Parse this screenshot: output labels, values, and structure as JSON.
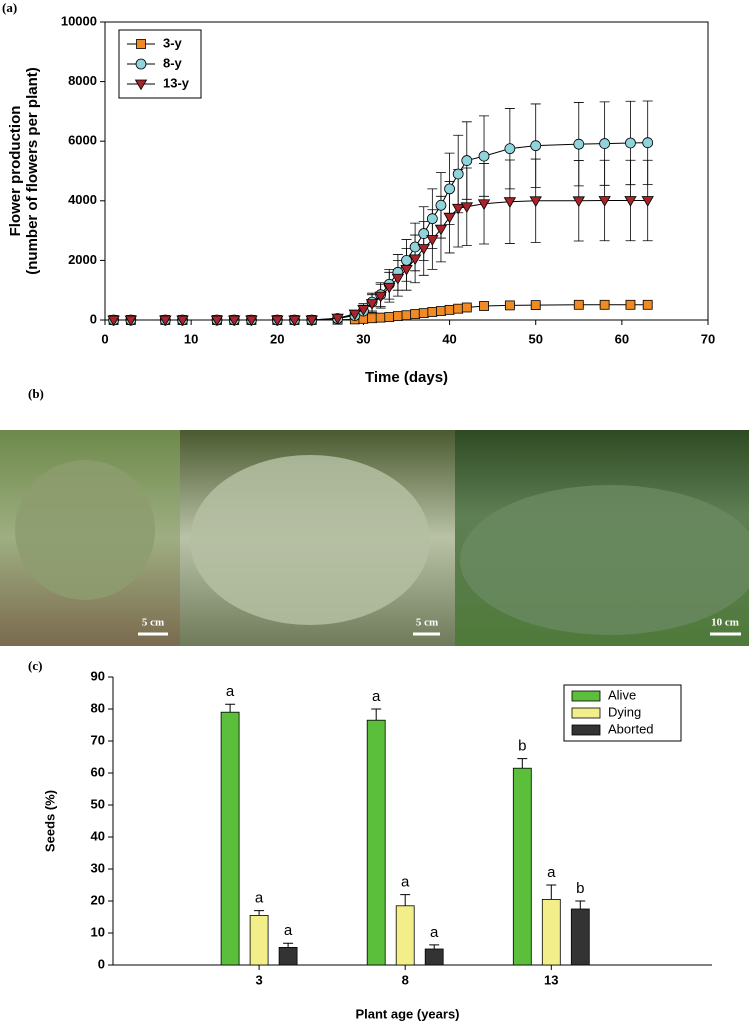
{
  "panel_labels": [
    "(a)",
    "(b)",
    "(c)"
  ],
  "photos": {
    "scale_labels": [
      "5 cm",
      "5 cm",
      "10 cm"
    ]
  },
  "chart_data": [
    {
      "type": "line",
      "y_label": [
        "Flower production",
        "(number of flowers per plant)"
      ],
      "x_label": "Time (days)",
      "x": [
        1,
        3,
        7,
        9,
        13,
        15,
        17,
        20,
        22,
        24,
        27,
        29,
        30,
        31,
        32,
        33,
        34,
        35,
        36,
        37,
        38,
        39,
        40,
        41,
        42,
        44,
        47,
        50,
        55,
        58,
        61,
        63
      ],
      "series": [
        {
          "name": "3-y",
          "color": "#f08a24",
          "marker": "square",
          "values": [
            0,
            0,
            0,
            0,
            0,
            0,
            0,
            0,
            0,
            0,
            10,
            20,
            40,
            60,
            80,
            100,
            130,
            160,
            200,
            230,
            270,
            300,
            340,
            380,
            420,
            470,
            490,
            500,
            510,
            510,
            510,
            510
          ],
          "errors": [
            0,
            0,
            0,
            0,
            0,
            0,
            0,
            0,
            0,
            0,
            10,
            20,
            20,
            30,
            30,
            30,
            40,
            40,
            50,
            50,
            50,
            60,
            60,
            60,
            60,
            70,
            70,
            70,
            70,
            70,
            70,
            70
          ]
        },
        {
          "name": "8-y",
          "color": "#8fd3dc",
          "marker": "circle",
          "values": [
            0,
            0,
            0,
            0,
            0,
            0,
            0,
            0,
            0,
            0,
            50,
            150,
            300,
            600,
            850,
            1200,
            1600,
            2000,
            2450,
            2900,
            3400,
            3850,
            4400,
            4900,
            5350,
            5500,
            5750,
            5850,
            5900,
            5920,
            5940,
            5950
          ],
          "errors": [
            0,
            0,
            0,
            0,
            0,
            0,
            0,
            0,
            0,
            0,
            30,
            100,
            200,
            300,
            400,
            500,
            600,
            700,
            800,
            900,
            1000,
            1100,
            1200,
            1300,
            1300,
            1350,
            1350,
            1400,
            1400,
            1400,
            1400,
            1400
          ]
        },
        {
          "name": "13-y",
          "color": "#a8232a",
          "marker": "triangle",
          "values": [
            0,
            0,
            0,
            0,
            0,
            0,
            0,
            0,
            0,
            0,
            60,
            200,
            350,
            550,
            800,
            1100,
            1400,
            1700,
            2050,
            2400,
            2700,
            3050,
            3450,
            3750,
            3800,
            3900,
            3970,
            4000,
            4000,
            4010,
            4010,
            4010
          ],
          "errors": [
            0,
            0,
            0,
            0,
            0,
            0,
            0,
            0,
            0,
            0,
            30,
            100,
            200,
            300,
            400,
            500,
            600,
            700,
            800,
            900,
            1000,
            1100,
            1200,
            1300,
            1300,
            1350,
            1400,
            1400,
            1350,
            1350,
            1350,
            1350
          ]
        }
      ],
      "xlim": [
        0,
        70
      ],
      "xticks": [
        0,
        10,
        20,
        30,
        40,
        50,
        60,
        70
      ],
      "ylim": [
        0,
        10000
      ],
      "yticks": [
        0,
        2000,
        4000,
        6000,
        8000,
        10000
      ],
      "legend": "upper left"
    },
    {
      "type": "bar",
      "y_label": "Seeds (%)",
      "x_label": "Plant age (years)",
      "categories": [
        "3",
        "8",
        "13"
      ],
      "series": [
        {
          "name": "Alive",
          "color": "#5cbf3c",
          "values": [
            79,
            76.5,
            61.5
          ],
          "errors": [
            2.5,
            3.5,
            3
          ],
          "letters": [
            "a",
            "a",
            "b"
          ]
        },
        {
          "name": "Dying",
          "color": "#f2ee8a",
          "values": [
            15.5,
            18.5,
            20.5
          ],
          "errors": [
            1.5,
            3.5,
            4.5
          ],
          "letters": [
            "a",
            "a",
            "a"
          ]
        },
        {
          "name": "Aborted",
          "color": "#333333",
          "values": [
            5.5,
            5,
            17.5
          ],
          "errors": [
            1.3,
            1.3,
            2.5
          ],
          "letters": [
            "a",
            "a",
            "b"
          ]
        }
      ],
      "ylim": [
        0,
        90
      ],
      "yticks": [
        0,
        10,
        20,
        30,
        40,
        50,
        60,
        70,
        80,
        90
      ],
      "legend": "upper right"
    }
  ]
}
